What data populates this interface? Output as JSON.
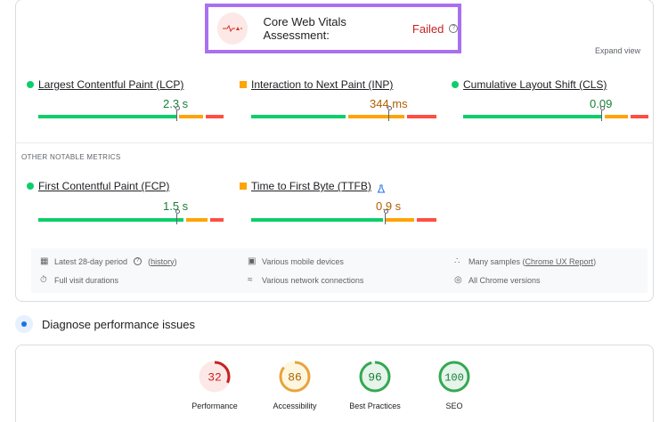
{
  "assessment": {
    "title": "Core Web Vitals Assessment:",
    "status": "Failed",
    "status_color": "#c5221f",
    "help_icon": "question-circle-icon"
  },
  "expand_label": "Expand view",
  "core_metrics": [
    {
      "label": "Largest Contentful Paint (LCP)",
      "value": "2.3 s",
      "rating": "good",
      "color": "#188038"
    },
    {
      "label": "Interaction to Next Paint (INP)",
      "value": "344 ms",
      "rating": "needs-improvement",
      "color": "#b06000"
    },
    {
      "label": "Cumulative Layout Shift (CLS)",
      "value": "0.09",
      "rating": "good",
      "color": "#188038"
    }
  ],
  "notable_heading": "OTHER NOTABLE METRICS",
  "notable_metrics": [
    {
      "label": "First Contentful Paint (FCP)",
      "value": "1.5 s",
      "rating": "good",
      "color": "#188038"
    },
    {
      "label": "Time to First Byte (TTFB)",
      "value": "0.9 s",
      "rating": "needs-improvement",
      "color": "#b06000",
      "extra_icon": "flask-icon"
    }
  ],
  "info": {
    "period": "Latest 28-day period",
    "history": "history",
    "durations": "Full visit durations",
    "devices": "Various mobile devices",
    "network": "Various network connections",
    "samples_prefix": "Many samples (",
    "samples_link": "Chrome UX Report",
    "samples_suffix": ")",
    "versions": "All Chrome versions"
  },
  "diagnose_title": "Diagnose performance issues",
  "scores": [
    {
      "score": "32",
      "label": "Performance",
      "color": "#c5221f",
      "bg": "#fce8e6"
    },
    {
      "score": "86",
      "label": "Accessibility",
      "color": "#b06000",
      "bg": "#fef7e0"
    },
    {
      "score": "96",
      "label": "Best Practices",
      "color": "#188038",
      "bg": "#e6f4ea"
    },
    {
      "score": "100",
      "label": "SEO",
      "color": "#188038",
      "bg": "#e6f4ea"
    }
  ],
  "colors": {
    "good": "#0cce6b",
    "needs_improvement": "#ffa400",
    "poor": "#ff4e42",
    "accent": "#a970f0"
  }
}
